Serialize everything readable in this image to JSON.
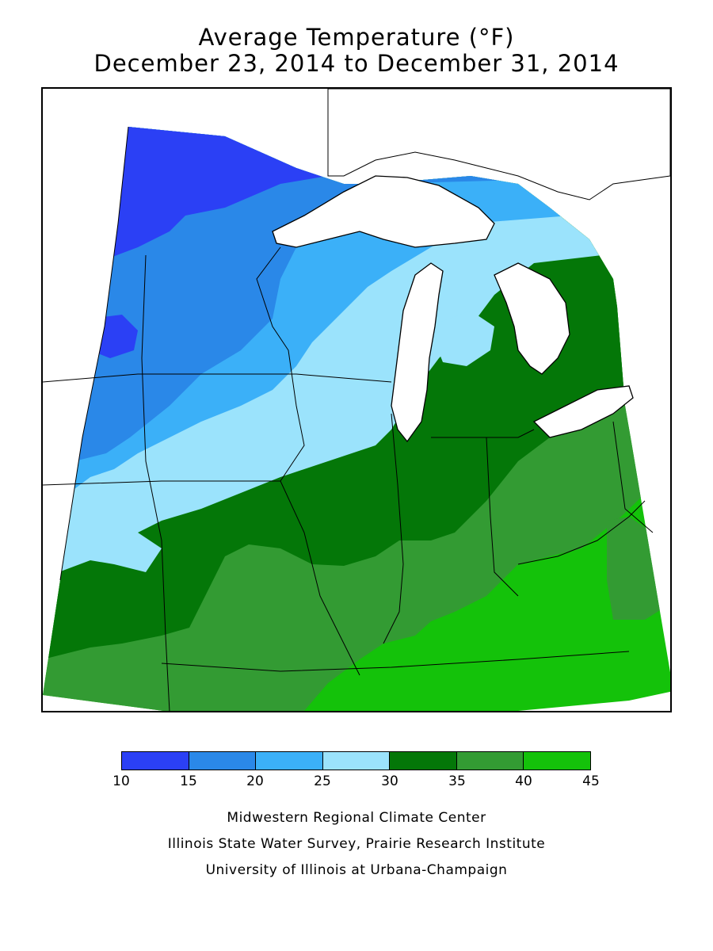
{
  "title": {
    "line1": "Average Temperature (°F)",
    "line2": "December 23, 2014 to December 31, 2014"
  },
  "legend": {
    "ticks": [
      "10",
      "15",
      "20",
      "25",
      "30",
      "35",
      "40",
      "45"
    ],
    "bins": [
      {
        "range": "10-15",
        "color": "#2b40f5"
      },
      {
        "range": "15-20",
        "color": "#2a88e8"
      },
      {
        "range": "20-25",
        "color": "#3bb0f8"
      },
      {
        "range": "25-30",
        "color": "#9be3fc"
      },
      {
        "range": "30-35",
        "color": "#047708"
      },
      {
        "range": "35-40",
        "color": "#339b33"
      },
      {
        "range": "40-45",
        "color": "#14c20a"
      }
    ]
  },
  "credits": {
    "line1": "Midwestern Regional Climate Center",
    "line2": "Illinois State Water Survey, Prairie Research Institute",
    "line3": "University of Illinois at Urbana-Champaign"
  },
  "map": {
    "region": "Midwest United States",
    "lake_color": "#ffffff",
    "outline_color": "#000000"
  }
}
